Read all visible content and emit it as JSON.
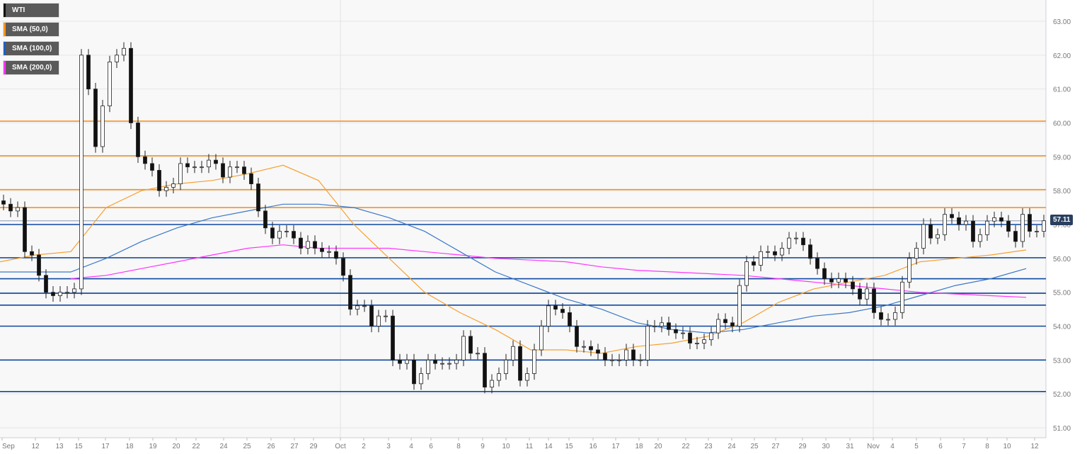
{
  "chart_data": {
    "type": "candlestick",
    "instrument": "WTI",
    "last_price": "57.11",
    "ylim": [
      51,
      63
    ],
    "y_ticks": [
      "51.00",
      "52.00",
      "53.00",
      "54.00",
      "55.00",
      "56.00",
      "57.00",
      "58.00",
      "59.00",
      "60.00",
      "61.00",
      "62.00",
      "63.00"
    ],
    "x_ticks": [
      "Sep",
      "12",
      "13",
      "15",
      "17",
      "18",
      "19",
      "20",
      "22",
      "24",
      "25",
      "26",
      "27",
      "29",
      "Oct",
      "2",
      "3",
      "4",
      "6",
      "8",
      "9",
      "10",
      "11",
      "14",
      "15",
      "16",
      "17",
      "18",
      "20",
      "22",
      "23",
      "24",
      "25",
      "27",
      "29",
      "30",
      "31",
      "Nov",
      "4",
      "5",
      "6",
      "7",
      "8",
      "10",
      "12"
    ],
    "grid": true,
    "legend_placement": "top-left",
    "legend": [
      {
        "name": "WTI",
        "color": "#111111"
      },
      {
        "name": "SMA (50,0)",
        "color": "#f7931e"
      },
      {
        "name": "SMA (100,0)",
        "color": "#1f5fbf"
      },
      {
        "name": "SMA (200,0)",
        "color": "#ff33ff"
      }
    ],
    "closes": [
      57.6,
      57.4,
      57.5,
      56.2,
      56.1,
      55.5,
      55.0,
      54.9,
      55.0,
      55.0,
      55.1,
      62.0,
      61.0,
      59.3,
      60.5,
      61.8,
      62.0,
      62.2,
      60.0,
      59.0,
      58.8,
      58.6,
      58.0,
      58.1,
      58.2,
      58.8,
      58.7,
      58.7,
      58.7,
      58.9,
      58.8,
      58.4,
      58.7,
      58.7,
      58.5,
      58.2,
      57.4,
      56.9,
      56.6,
      56.8,
      56.8,
      56.6,
      56.3,
      56.5,
      56.3,
      56.2,
      56.2,
      56.0,
      55.5,
      54.5,
      54.6,
      54.6,
      54.0,
      54.3,
      54.3,
      53.0,
      52.9,
      53.0,
      52.3,
      52.6,
      53.0,
      52.9,
      52.9,
      52.9,
      53.0,
      53.7,
      53.2,
      53.2,
      52.2,
      52.4,
      52.6,
      53.0,
      53.4,
      52.4,
      52.6,
      53.3,
      54.0,
      54.6,
      54.5,
      54.4,
      54.0,
      53.4,
      53.4,
      53.3,
      53.2,
      53.0,
      53.0,
      53.0,
      53.3,
      53.0,
      53.0,
      54.0,
      54.0,
      54.1,
      53.9,
      53.8,
      53.8,
      53.5,
      53.5,
      53.6,
      53.8,
      54.2,
      54.1,
      54.0,
      55.2,
      55.9,
      55.8,
      56.2,
      56.2,
      56.1,
      56.3,
      56.6,
      56.6,
      56.4,
      56.0,
      55.7,
      55.4,
      55.3,
      55.4,
      55.3,
      55.1,
      54.8,
      55.1,
      54.4,
      54.2,
      54.2,
      54.4,
      55.3,
      56.0,
      56.3,
      57.0,
      56.6,
      56.7,
      57.3,
      57.2,
      57.0,
      57.1,
      56.5,
      56.7,
      57.1,
      57.2,
      57.1,
      56.8,
      56.5,
      57.3,
      56.8,
      56.8,
      57.11
    ],
    "sma50": [
      55.9,
      56.1,
      56.2,
      57.5,
      58.0,
      58.2,
      58.3,
      58.5,
      58.75,
      58.3,
      57.0,
      56.0,
      55.0,
      54.4,
      53.9,
      53.3,
      53.3,
      53.2,
      53.4,
      53.5,
      53.7,
      54.1,
      54.7,
      55.1,
      55.3,
      55.5,
      55.9,
      56.0,
      56.1,
      56.25
    ],
    "sma100": [
      55.6,
      55.6,
      55.6,
      56.0,
      56.5,
      56.9,
      57.2,
      57.4,
      57.6,
      57.6,
      57.5,
      57.2,
      56.8,
      56.2,
      55.6,
      55.2,
      54.8,
      54.5,
      54.1,
      53.9,
      53.8,
      53.9,
      54.1,
      54.3,
      54.4,
      54.6,
      54.9,
      55.2,
      55.4,
      55.7
    ],
    "sma200": [
      null,
      null,
      55.4,
      55.5,
      55.7,
      55.9,
      56.1,
      56.3,
      56.4,
      56.3,
      56.3,
      56.3,
      56.2,
      56.1,
      56.0,
      55.95,
      55.9,
      55.75,
      55.65,
      55.6,
      55.55,
      55.5,
      55.4,
      55.3,
      55.2,
      55.1,
      55.0,
      54.95,
      54.9,
      54.85
    ],
    "resistance_levels": [
      60.05,
      59.03,
      58.03,
      57.5
    ],
    "support_levels": [
      57.0,
      56.02,
      55.4,
      54.97,
      54.62,
      54.0,
      53.0,
      52.07
    ]
  }
}
